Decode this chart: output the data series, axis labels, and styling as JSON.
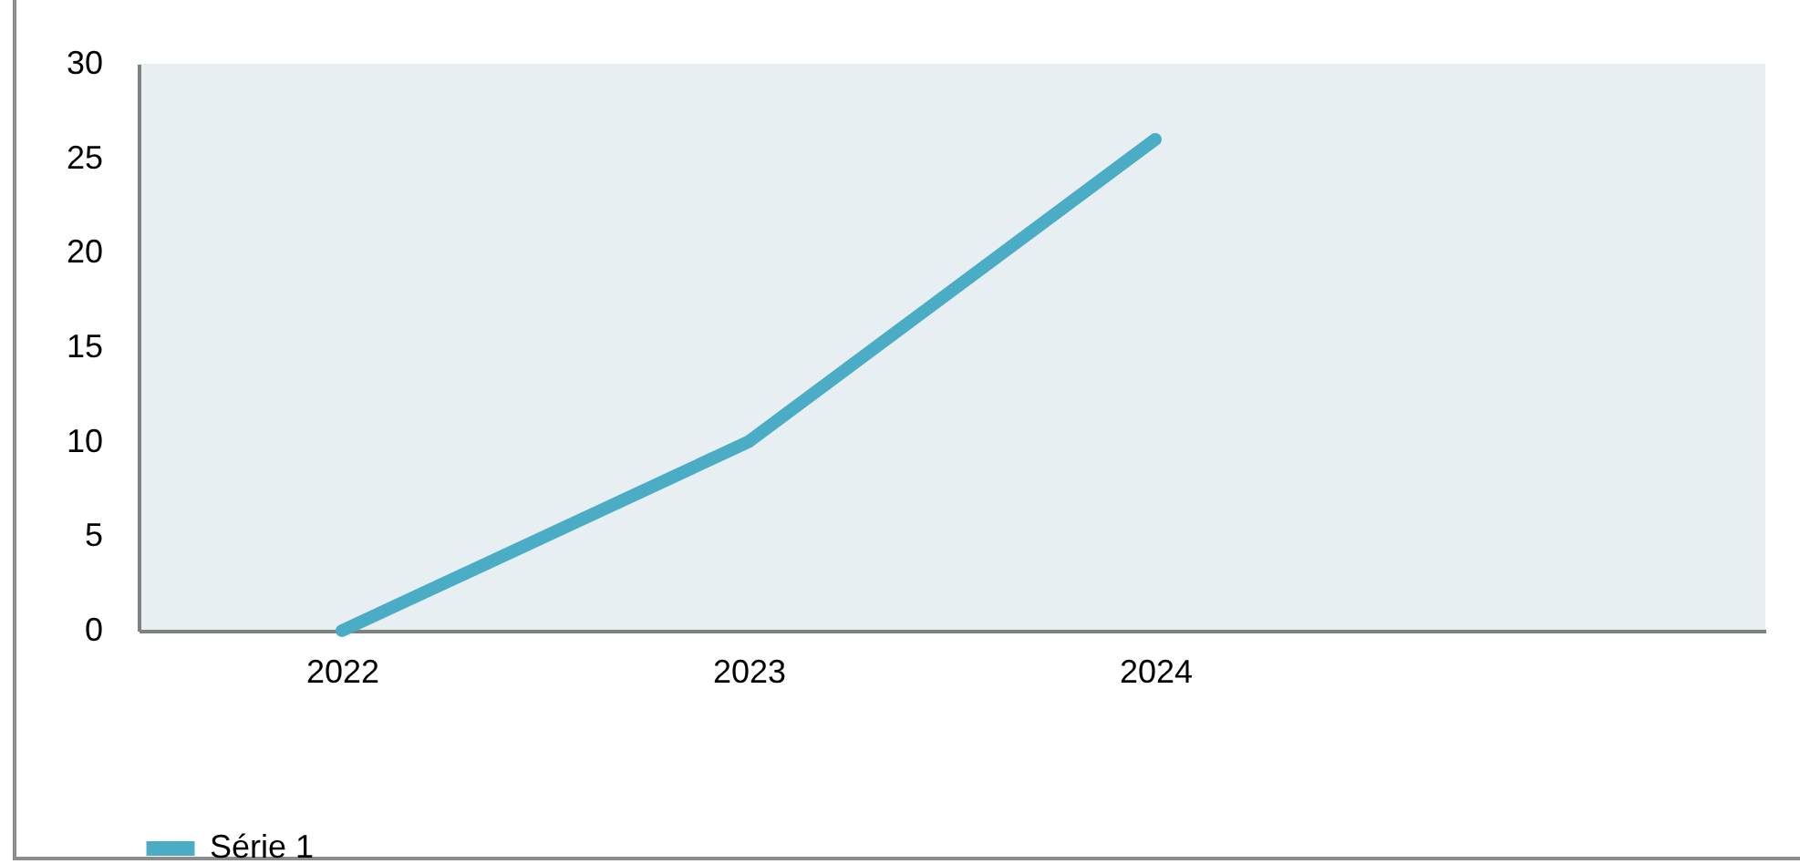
{
  "chart_data": {
    "type": "line",
    "categories": [
      "2022",
      "2023",
      "2024",
      null
    ],
    "series": [
      {
        "name": "Série 1",
        "color": "#4bacc6",
        "values": [
          0,
          10,
          26,
          null
        ]
      }
    ],
    "ylim": [
      0,
      30
    ],
    "yticks": [
      0,
      5,
      10,
      15,
      20,
      25,
      30
    ],
    "grid": false,
    "legend": "bottom",
    "marker": "none",
    "line_style": "solid"
  }
}
